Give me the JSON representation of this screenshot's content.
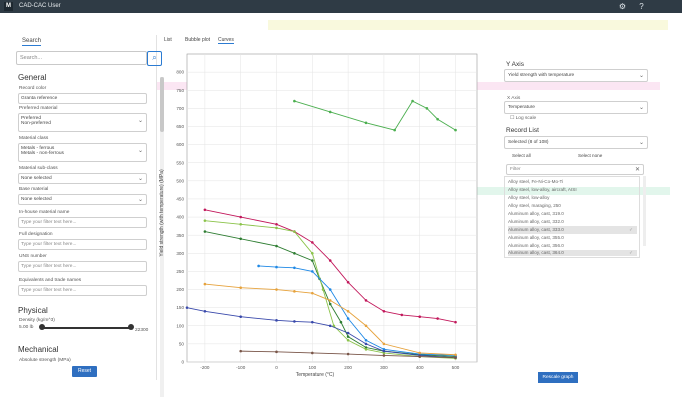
{
  "app": {
    "title": "CAD-CAC User",
    "logo": "M",
    "icons": [
      "gear-icon",
      "help-icon"
    ]
  },
  "sidebar": {
    "tab": "Search",
    "search_placeholder": "Search...",
    "general_title": "General",
    "fields": [
      {
        "label": "Record color",
        "value": "Granta reference"
      },
      {
        "label": "Preferred material",
        "value": "Preferred\nNon-preferred"
      },
      {
        "label": "Material class",
        "value": "Metals - ferrous\nMetals - non-ferrous"
      },
      {
        "label": "Material sub-class",
        "value": "None selected"
      },
      {
        "label": "Base material",
        "value": "None selected"
      },
      {
        "label": "In-house material name",
        "value": "Type your filter text here..."
      },
      {
        "label": "Full designation",
        "value": "Type your filter text here..."
      },
      {
        "label": "UNS number",
        "value": "Type your filter text here..."
      },
      {
        "label": "Equivalents and trade names",
        "value": "Type your filter text here..."
      }
    ],
    "physical_title": "Physical",
    "density_label": "Density (kg/m^3)",
    "density_min": "5.00 lb",
    "density_max": "22300",
    "mechanical_title": "Mechanical",
    "mechanical_sub": "Absolute strength (MPa)",
    "reset_label": "Reset"
  },
  "tabs": [
    "List",
    "Bubble plot",
    "Curves"
  ],
  "active_tab": "Curves",
  "right_panel": {
    "y_axis_title": "Y Axis",
    "y_axis_value": "Yield strength with temperature",
    "x_axis_label": "X Axis",
    "x_axis_value": "Temperature",
    "log_scale_label": "Log scale",
    "record_list_title": "Record List",
    "record_list_value": "Selected (8 of 108)",
    "select_all": "Select all",
    "select_none": "Select none",
    "filter_placeholder": "Filter",
    "items": [
      {
        "text": "Alloy steel, Fe-Ni-Co-Mo-Ti",
        "selected": false,
        "checked": false
      },
      {
        "text": "Alloy steel, low-alloy, aircraft, AISI",
        "selected": false,
        "checked": false
      },
      {
        "text": "Alloy steel, low-alloy",
        "selected": false,
        "checked": false
      },
      {
        "text": "Alloy steel, maraging, 250",
        "selected": false,
        "checked": false
      },
      {
        "text": "Aluminum alloy, cast, 319.0",
        "selected": false,
        "checked": false
      },
      {
        "text": "Aluminum alloy, cast, 332.0",
        "selected": false,
        "checked": false
      },
      {
        "text": "Aluminum alloy, cast, 333.0",
        "selected": true,
        "checked": true
      },
      {
        "text": "Aluminum alloy, cast, 355.0",
        "selected": false,
        "checked": false
      },
      {
        "text": "Aluminum alloy, cast, 356.0",
        "selected": false,
        "checked": false
      },
      {
        "text": "Aluminum alloy, cast, 364.0",
        "selected": true,
        "checked": true
      }
    ],
    "rescale_label": "Rescale graph"
  },
  "chart_data": {
    "type": "line",
    "xlabel": "Temperature (°C)",
    "ylabel": "Yield strength (with temperature) (MPa)",
    "xlim": [
      -250,
      560
    ],
    "ylim": [
      0,
      850
    ],
    "x_ticks": [
      -200,
      -100,
      0,
      100,
      200,
      300,
      400,
      500
    ],
    "y_ticks": [
      0,
      50,
      100,
      150,
      200,
      250,
      300,
      350,
      400,
      450,
      500,
      550,
      600,
      650,
      700,
      750,
      800
    ],
    "grid": true,
    "series": [
      {
        "color": "#c2185b",
        "points": [
          [
            -200,
            420
          ],
          [
            -100,
            400
          ],
          [
            0,
            380
          ],
          [
            50,
            360
          ],
          [
            100,
            330
          ],
          [
            150,
            280
          ],
          [
            200,
            220
          ],
          [
            250,
            170
          ],
          [
            300,
            140
          ],
          [
            350,
            130
          ],
          [
            400,
            125
          ],
          [
            450,
            120
          ],
          [
            500,
            110
          ]
        ]
      },
      {
        "color": "#4caf50",
        "points": [
          [
            50,
            720
          ],
          [
            150,
            690
          ],
          [
            250,
            660
          ],
          [
            330,
            640
          ],
          [
            380,
            720
          ],
          [
            420,
            700
          ],
          [
            450,
            670
          ],
          [
            500,
            640
          ]
        ]
      },
      {
        "color": "#2e7d32",
        "points": [
          [
            -200,
            360
          ],
          [
            -100,
            340
          ],
          [
            0,
            320
          ],
          [
            50,
            300
          ],
          [
            100,
            280
          ],
          [
            120,
            230
          ],
          [
            150,
            160
          ],
          [
            180,
            110
          ],
          [
            200,
            70
          ],
          [
            250,
            40
          ],
          [
            300,
            30
          ],
          [
            400,
            20
          ],
          [
            500,
            15
          ]
        ]
      },
      {
        "color": "#8bc34a",
        "points": [
          [
            -200,
            390
          ],
          [
            -100,
            380
          ],
          [
            0,
            370
          ],
          [
            50,
            360
          ],
          [
            100,
            300
          ],
          [
            130,
            200
          ],
          [
            160,
            100
          ],
          [
            200,
            60
          ],
          [
            250,
            35
          ],
          [
            300,
            25
          ],
          [
            400,
            15
          ],
          [
            500,
            10
          ]
        ]
      },
      {
        "color": "#1e88e5",
        "points": [
          [
            -50,
            265
          ],
          [
            0,
            262
          ],
          [
            50,
            260
          ],
          [
            100,
            250
          ],
          [
            150,
            200
          ],
          [
            200,
            120
          ],
          [
            250,
            60
          ],
          [
            300,
            35
          ],
          [
            400,
            22
          ],
          [
            500,
            18
          ]
        ]
      },
      {
        "color": "#e6a23c",
        "points": [
          [
            -200,
            215
          ],
          [
            -100,
            205
          ],
          [
            0,
            200
          ],
          [
            50,
            195
          ],
          [
            100,
            190
          ],
          [
            150,
            170
          ],
          [
            200,
            140
          ],
          [
            250,
            100
          ],
          [
            300,
            50
          ],
          [
            400,
            25
          ],
          [
            500,
            20
          ]
        ]
      },
      {
        "color": "#3949ab",
        "points": [
          [
            -250,
            150
          ],
          [
            -200,
            140
          ],
          [
            -100,
            125
          ],
          [
            0,
            115
          ],
          [
            50,
            112
          ],
          [
            100,
            110
          ],
          [
            150,
            100
          ],
          [
            200,
            80
          ],
          [
            250,
            50
          ],
          [
            300,
            30
          ],
          [
            400,
            18
          ],
          [
            500,
            12
          ]
        ]
      },
      {
        "color": "#795548",
        "points": [
          [
            -100,
            30
          ],
          [
            0,
            28
          ],
          [
            100,
            25
          ],
          [
            200,
            22
          ],
          [
            300,
            18
          ],
          [
            400,
            15
          ],
          [
            500,
            12
          ]
        ]
      }
    ]
  }
}
